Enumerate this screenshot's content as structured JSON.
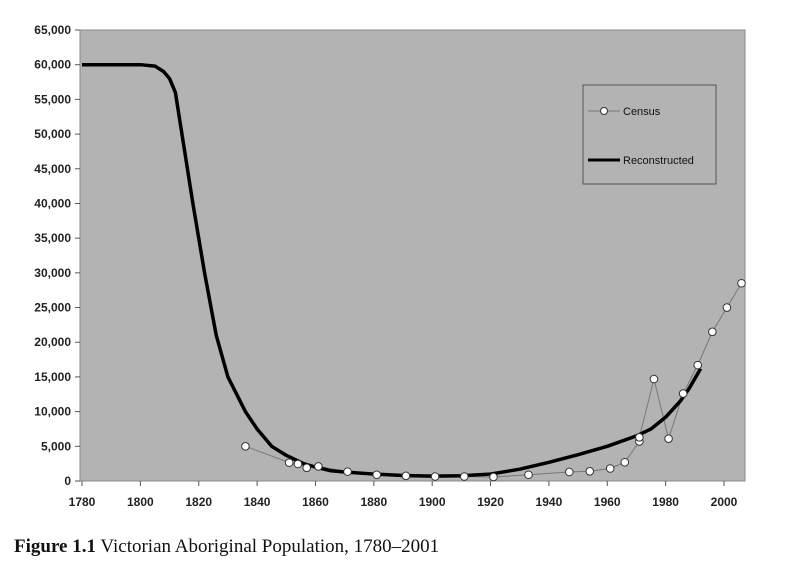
{
  "caption": {
    "label": "Figure 1.1",
    "text": "Victorian Aboriginal Population, 1780–2001"
  },
  "chart_data": {
    "type": "line",
    "title": "Victorian Aboriginal Population, 1780–2001",
    "xlabel": "",
    "ylabel": "",
    "xlim": [
      1780,
      2008
    ],
    "ylim": [
      0,
      65000
    ],
    "xticks": [
      1780,
      1800,
      1820,
      1840,
      1860,
      1880,
      1900,
      1920,
      1940,
      1960,
      1980,
      2000
    ],
    "yticks": [
      0,
      5000,
      10000,
      15000,
      20000,
      25000,
      30000,
      35000,
      40000,
      45000,
      50000,
      55000,
      60000,
      65000
    ],
    "ytick_labels": [
      "0",
      "5,000",
      "10,000",
      "15,000",
      "20,000",
      "25,000",
      "30,000",
      "35,000",
      "40,000",
      "45,000",
      "50,000",
      "55,000",
      "60,000",
      "65,000"
    ],
    "grid": false,
    "legend_position": "top-right",
    "background": "#b3b3b3",
    "series": [
      {
        "name": "Census",
        "style": "thin grey line with open circles",
        "x": [
          1836,
          1851,
          1854,
          1857,
          1861,
          1871,
          1881,
          1891,
          1901,
          1911,
          1921,
          1933,
          1947,
          1954,
          1961,
          1966,
          1971,
          1971,
          1976,
          1981,
          1986,
          1991,
          1996,
          2001,
          2006
        ],
        "y": [
          5000,
          2650,
          2450,
          1900,
          2100,
          1350,
          900,
          750,
          650,
          650,
          580,
          900,
          1300,
          1400,
          1800,
          2700,
          5700,
          6300,
          14700,
          6100,
          12600,
          16700,
          21500,
          25000,
          28500
        ]
      },
      {
        "name": "Reconstructed",
        "style": "thick black line",
        "x": [
          1780,
          1800,
          1805,
          1808,
          1810,
          1812,
          1815,
          1818,
          1822,
          1826,
          1830,
          1836,
          1840,
          1845,
          1850,
          1856,
          1860,
          1865,
          1870,
          1880,
          1890,
          1900,
          1910,
          1920,
          1930,
          1940,
          1950,
          1960,
          1970,
          1975,
          1980,
          1985,
          1988,
          1992
        ],
        "y": [
          60000,
          60000,
          59800,
          59000,
          58000,
          56000,
          48000,
          40000,
          30000,
          21000,
          15000,
          10000,
          7500,
          5000,
          3700,
          2500,
          2000,
          1500,
          1300,
          1000,
          800,
          700,
          750,
          1000,
          1700,
          2700,
          3800,
          5000,
          6500,
          7500,
          9200,
          11500,
          13300,
          16200
        ]
      }
    ]
  }
}
